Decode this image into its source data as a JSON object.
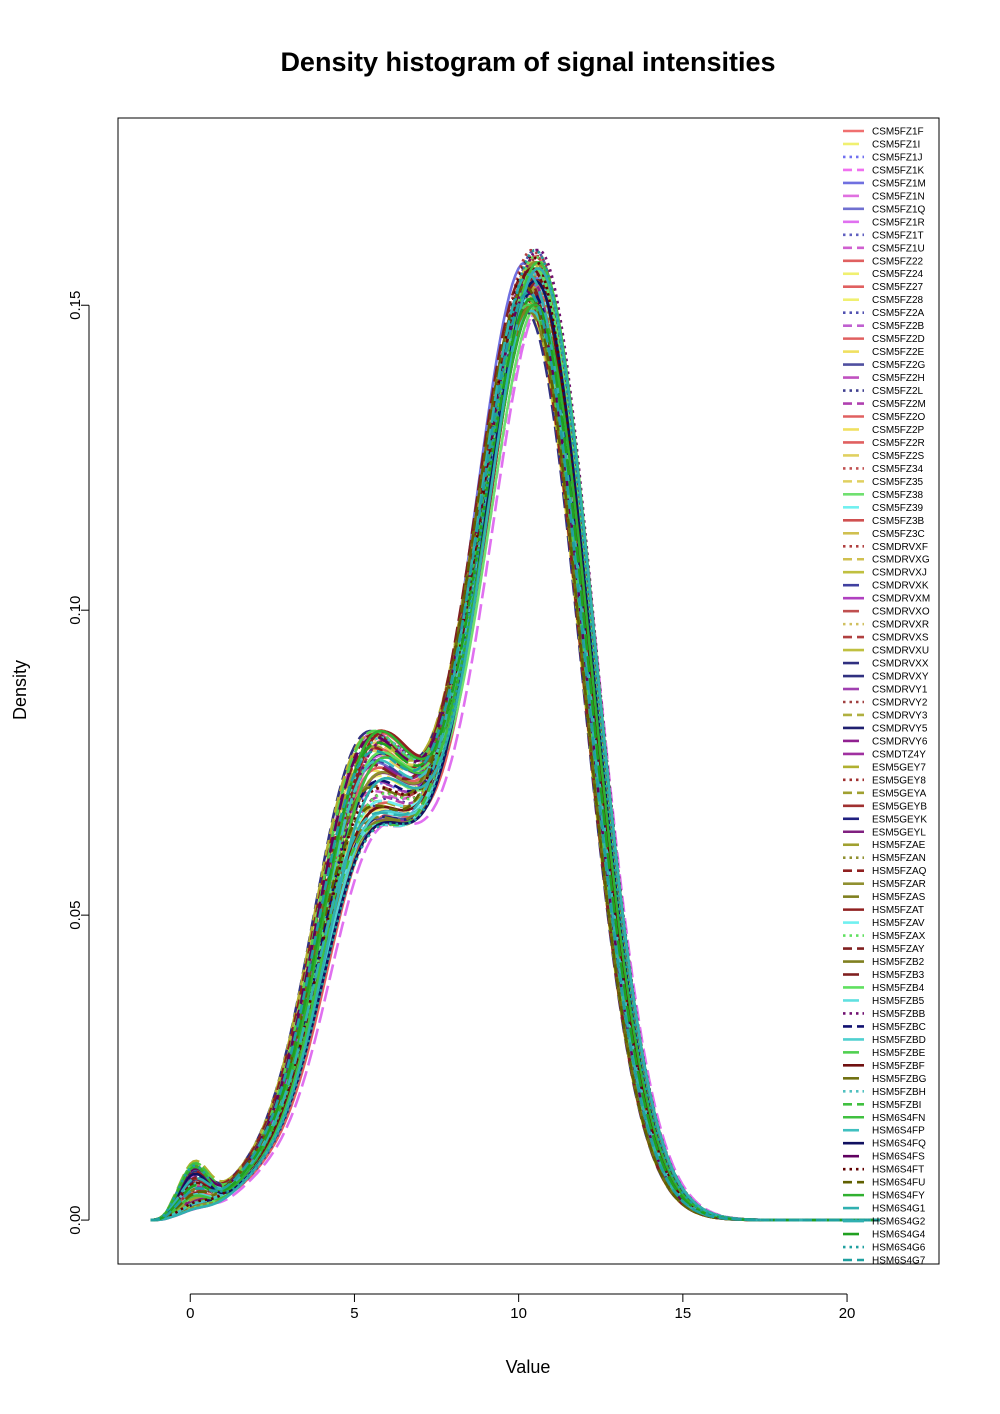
{
  "chart_data": {
    "type": "line",
    "title": "Density histogram of signal intensities",
    "xlabel": "Value",
    "ylabel": "Density",
    "xlim": [
      -2.2,
      22.8
    ],
    "ylim": [
      -0.0072,
      0.1807
    ],
    "x_ticks": [
      {
        "value": 0,
        "label": "0"
      },
      {
        "value": 5,
        "label": "5"
      },
      {
        "value": 10,
        "label": "10"
      },
      {
        "value": 15,
        "label": "15"
      },
      {
        "value": 20,
        "label": "20"
      }
    ],
    "y_ticks": [
      {
        "value": 0.0,
        "label": "0.00"
      },
      {
        "value": 0.05,
        "label": "0.05"
      },
      {
        "value": 0.1,
        "label": "0.10"
      },
      {
        "value": 0.15,
        "label": "0.15"
      }
    ],
    "grid": false,
    "legend_position": "top-right",
    "curve_x_range": [
      -1.2,
      21.0
    ],
    "series": [
      {
        "name": "CSM5FZ1F",
        "color": "#f07070",
        "dash": "solid",
        "peak_x": 10.6,
        "peak_y": 0.15
      },
      {
        "name": "CSM5FZ1I",
        "color": "#f0f070",
        "dash": "longdash",
        "peak_x": 10.4,
        "peak_y": 0.148
      },
      {
        "name": "CSM5FZ1J",
        "color": "#7070f0",
        "dash": "dotted",
        "peak_x": 10.5,
        "peak_y": 0.152
      },
      {
        "name": "CSM5FZ1K",
        "color": "#f070f0",
        "dash": "dashed",
        "peak_x": 10.7,
        "peak_y": 0.146
      },
      {
        "name": "CSM5FZ1M",
        "color": "#7070e0",
        "dash": "solid",
        "peak_x": 10.3,
        "peak_y": 0.154
      },
      {
        "name": "CSM5FZ1N",
        "color": "#e070e0",
        "dash": "longdash",
        "peak_x": 10.6,
        "peak_y": 0.149
      },
      {
        "name": "CSM5FZ1Q",
        "color": "#7070d0",
        "dash": "solid",
        "peak_x": 10.4,
        "peak_y": 0.151
      },
      {
        "name": "CSM5FZ1R",
        "color": "#e070f0",
        "dash": "longdash",
        "peak_x": 10.8,
        "peak_y": 0.147
      },
      {
        "name": "CSM5FZ1T",
        "color": "#6060c0",
        "dash": "dotted",
        "peak_x": 10.5,
        "peak_y": 0.153
      },
      {
        "name": "CSM5FZ1U",
        "color": "#d060d0",
        "dash": "dashed",
        "peak_x": 10.3,
        "peak_y": 0.15
      },
      {
        "name": "CSM5FZ22",
        "color": "#e06060",
        "dash": "solid",
        "peak_x": 10.6,
        "peak_y": 0.155
      },
      {
        "name": "CSM5FZ24",
        "color": "#f0f070",
        "dash": "longdash",
        "peak_x": 10.4,
        "peak_y": 0.145
      },
      {
        "name": "CSM5FZ27",
        "color": "#e06060",
        "dash": "solid",
        "peak_x": 10.7,
        "peak_y": 0.152
      },
      {
        "name": "CSM5FZ28",
        "color": "#f0f070",
        "dash": "longdash",
        "peak_x": 10.5,
        "peak_y": 0.148
      },
      {
        "name": "CSM5FZ2A",
        "color": "#5050b0",
        "dash": "dotted",
        "peak_x": 10.6,
        "peak_y": 0.156
      },
      {
        "name": "CSM5FZ2B",
        "color": "#c060d0",
        "dash": "dashed",
        "peak_x": 10.4,
        "peak_y": 0.149
      },
      {
        "name": "CSM5FZ2D",
        "color": "#e06060",
        "dash": "solid",
        "peak_x": 10.5,
        "peak_y": 0.151
      },
      {
        "name": "CSM5FZ2E",
        "color": "#f0e060",
        "dash": "longdash",
        "peak_x": 10.3,
        "peak_y": 0.147
      },
      {
        "name": "CSM5FZ2G",
        "color": "#5050a0",
        "dash": "solid",
        "peak_x": 10.6,
        "peak_y": 0.153
      },
      {
        "name": "CSM5FZ2H",
        "color": "#c050c0",
        "dash": "longdash",
        "peak_x": 10.4,
        "peak_y": 0.15
      },
      {
        "name": "CSM5FZ2L",
        "color": "#404090",
        "dash": "dotted",
        "peak_x": 10.7,
        "peak_y": 0.152
      },
      {
        "name": "CSM5FZ2M",
        "color": "#b040b0",
        "dash": "dashed",
        "peak_x": 10.5,
        "peak_y": 0.148
      },
      {
        "name": "CSM5FZ2O",
        "color": "#e06060",
        "dash": "solid",
        "peak_x": 10.6,
        "peak_y": 0.154
      },
      {
        "name": "CSM5FZ2P",
        "color": "#f0e060",
        "dash": "longdash",
        "peak_x": 10.4,
        "peak_y": 0.146
      },
      {
        "name": "CSM5FZ2R",
        "color": "#e06060",
        "dash": "solid",
        "peak_x": 10.5,
        "peak_y": 0.151
      },
      {
        "name": "CSM5FZ2S",
        "color": "#e0d060",
        "dash": "longdash",
        "peak_x": 10.3,
        "peak_y": 0.149
      },
      {
        "name": "CSM5FZ34",
        "color": "#c05050",
        "dash": "dotted",
        "peak_x": 10.6,
        "peak_y": 0.155
      },
      {
        "name": "CSM5FZ35",
        "color": "#e0d060",
        "dash": "dashed",
        "peak_x": 10.4,
        "peak_y": 0.15
      },
      {
        "name": "CSM5FZ38",
        "color": "#70e070",
        "dash": "solid",
        "peak_x": 10.7,
        "peak_y": 0.147
      },
      {
        "name": "CSM5FZ39",
        "color": "#70f0f0",
        "dash": "longdash",
        "peak_x": 10.5,
        "peak_y": 0.152
      },
      {
        "name": "CSM5FZ3B",
        "color": "#d05050",
        "dash": "solid",
        "peak_x": 10.6,
        "peak_y": 0.153
      },
      {
        "name": "CSM5FZ3C",
        "color": "#d0c050",
        "dash": "longdash",
        "peak_x": 10.4,
        "peak_y": 0.148
      },
      {
        "name": "CSMDRVXF",
        "color": "#b04040",
        "dash": "dotted",
        "peak_x": 10.5,
        "peak_y": 0.156
      },
      {
        "name": "CSMDRVXG",
        "color": "#d0c050",
        "dash": "dashed",
        "peak_x": 10.3,
        "peak_y": 0.149
      },
      {
        "name": "CSMDRVXJ",
        "color": "#c0c040",
        "dash": "solid",
        "peak_x": 10.6,
        "peak_y": 0.151
      },
      {
        "name": "CSMDRVXK",
        "color": "#4040a0",
        "dash": "longdash",
        "peak_x": 10.4,
        "peak_y": 0.147
      },
      {
        "name": "CSMDRVXM",
        "color": "#b040c0",
        "dash": "solid",
        "peak_x": 10.7,
        "peak_y": 0.153
      },
      {
        "name": "CSMDRVXO",
        "color": "#c05050",
        "dash": "longdash",
        "peak_x": 10.5,
        "peak_y": 0.15
      },
      {
        "name": "CSMDRVXR",
        "color": "#d0c060",
        "dash": "dotted",
        "peak_x": 10.6,
        "peak_y": 0.152
      },
      {
        "name": "CSMDRVXS",
        "color": "#b04040",
        "dash": "dashed",
        "peak_x": 10.4,
        "peak_y": 0.148
      },
      {
        "name": "CSMDRVXU",
        "color": "#c0c040",
        "dash": "solid",
        "peak_x": 10.5,
        "peak_y": 0.154
      },
      {
        "name": "CSMDRVXX",
        "color": "#303080",
        "dash": "longdash",
        "peak_x": 10.3,
        "peak_y": 0.146
      },
      {
        "name": "CSMDRVXY",
        "color": "#303080",
        "dash": "solid",
        "peak_x": 10.6,
        "peak_y": 0.151
      },
      {
        "name": "CSMDRVY1",
        "color": "#a040b0",
        "dash": "longdash",
        "peak_x": 10.4,
        "peak_y": 0.149
      },
      {
        "name": "CSMDRVY2",
        "color": "#a04040",
        "dash": "dotted",
        "peak_x": 10.7,
        "peak_y": 0.155
      },
      {
        "name": "CSMDRVY3",
        "color": "#b0b040",
        "dash": "dashed",
        "peak_x": 10.5,
        "peak_y": 0.15
      },
      {
        "name": "CSMDRVY5",
        "color": "#202070",
        "dash": "solid",
        "peak_x": 10.6,
        "peak_y": 0.147
      },
      {
        "name": "CSMDRVY6",
        "color": "#902090",
        "dash": "longdash",
        "peak_x": 10.4,
        "peak_y": 0.152
      },
      {
        "name": "CSMDTZ4Y",
        "color": "#a030a0",
        "dash": "solid",
        "peak_x": 10.5,
        "peak_y": 0.153
      },
      {
        "name": "ESM5GEY7",
        "color": "#b0b030",
        "dash": "longdash",
        "peak_x": 10.3,
        "peak_y": 0.148
      },
      {
        "name": "ESM5GEY8",
        "color": "#a03030",
        "dash": "dotted",
        "peak_x": 10.6,
        "peak_y": 0.156
      },
      {
        "name": "ESM5GEYA",
        "color": "#a0a030",
        "dash": "dashed",
        "peak_x": 10.4,
        "peak_y": 0.149
      },
      {
        "name": "ESM5GEYB",
        "color": "#a03030",
        "dash": "solid",
        "peak_x": 10.7,
        "peak_y": 0.151
      },
      {
        "name": "ESM5GEYK",
        "color": "#202080",
        "dash": "longdash",
        "peak_x": 10.5,
        "peak_y": 0.147
      },
      {
        "name": "ESM5GEYL",
        "color": "#802080",
        "dash": "solid",
        "peak_x": 10.6,
        "peak_y": 0.153
      },
      {
        "name": "HSM5FZAE",
        "color": "#a0a030",
        "dash": "longdash",
        "peak_x": 10.4,
        "peak_y": 0.15
      },
      {
        "name": "HSM5FZAN",
        "color": "#909030",
        "dash": "dotted",
        "peak_x": 10.5,
        "peak_y": 0.152
      },
      {
        "name": "HSM5FZAQ",
        "color": "#902020",
        "dash": "dashed",
        "peak_x": 10.3,
        "peak_y": 0.148
      },
      {
        "name": "HSM5FZAR",
        "color": "#909030",
        "dash": "solid",
        "peak_x": 10.6,
        "peak_y": 0.154
      },
      {
        "name": "HSM5FZAS",
        "color": "#808020",
        "dash": "longdash",
        "peak_x": 10.4,
        "peak_y": 0.146
      },
      {
        "name": "HSM5FZAT",
        "color": "#902020",
        "dash": "solid",
        "peak_x": 10.7,
        "peak_y": 0.151
      },
      {
        "name": "HSM5FZAV",
        "color": "#70f0f0",
        "dash": "longdash",
        "peak_x": 10.5,
        "peak_y": 0.149
      },
      {
        "name": "HSM5FZAX",
        "color": "#60e060",
        "dash": "dotted",
        "peak_x": 10.6,
        "peak_y": 0.155
      },
      {
        "name": "HSM5FZAY",
        "color": "#802020",
        "dash": "dashed",
        "peak_x": 10.4,
        "peak_y": 0.15
      },
      {
        "name": "HSM5FZB2",
        "color": "#808020",
        "dash": "solid",
        "peak_x": 10.5,
        "peak_y": 0.147
      },
      {
        "name": "HSM5FZB3",
        "color": "#802020",
        "dash": "longdash",
        "peak_x": 10.3,
        "peak_y": 0.152
      },
      {
        "name": "HSM5FZB4",
        "color": "#60e060",
        "dash": "solid",
        "peak_x": 10.6,
        "peak_y": 0.153
      },
      {
        "name": "HSM5FZB5",
        "color": "#60e0e0",
        "dash": "longdash",
        "peak_x": 10.4,
        "peak_y": 0.148
      },
      {
        "name": "HSM5FZBB",
        "color": "#701070",
        "dash": "dotted",
        "peak_x": 10.7,
        "peak_y": 0.156
      },
      {
        "name": "HSM5FZBC",
        "color": "#101070",
        "dash": "dashed",
        "peak_x": 10.5,
        "peak_y": 0.149
      },
      {
        "name": "HSM5FZBD",
        "color": "#50d0d0",
        "dash": "solid",
        "peak_x": 10.6,
        "peak_y": 0.151
      },
      {
        "name": "HSM5FZBE",
        "color": "#50d050",
        "dash": "longdash",
        "peak_x": 10.4,
        "peak_y": 0.147
      },
      {
        "name": "HSM5FZBF",
        "color": "#701010",
        "dash": "solid",
        "peak_x": 10.5,
        "peak_y": 0.153
      },
      {
        "name": "HSM5FZBG",
        "color": "#707010",
        "dash": "longdash",
        "peak_x": 10.3,
        "peak_y": 0.15
      },
      {
        "name": "HSM5FZBH",
        "color": "#50c0c0",
        "dash": "dotted",
        "peak_x": 10.6,
        "peak_y": 0.152
      },
      {
        "name": "HSM5FZBI",
        "color": "#40c040",
        "dash": "dashed",
        "peak_x": 10.4,
        "peak_y": 0.148
      },
      {
        "name": "HSM6S4FN",
        "color": "#40c040",
        "dash": "solid",
        "peak_x": 10.7,
        "peak_y": 0.154
      },
      {
        "name": "HSM6S4FP",
        "color": "#40c0c0",
        "dash": "longdash",
        "peak_x": 10.5,
        "peak_y": 0.146
      },
      {
        "name": "HSM6S4FQ",
        "color": "#101060",
        "dash": "solid",
        "peak_x": 10.6,
        "peak_y": 0.151
      },
      {
        "name": "HSM6S4FS",
        "color": "#600060",
        "dash": "longdash",
        "peak_x": 10.4,
        "peak_y": 0.149
      },
      {
        "name": "HSM6S4FT",
        "color": "#600000",
        "dash": "dotted",
        "peak_x": 10.5,
        "peak_y": 0.155
      },
      {
        "name": "HSM6S4FU",
        "color": "#606000",
        "dash": "dashed",
        "peak_x": 10.3,
        "peak_y": 0.15
      },
      {
        "name": "HSM6S4FY",
        "color": "#30b030",
        "dash": "solid",
        "peak_x": 10.6,
        "peak_y": 0.147
      },
      {
        "name": "HSM6S4G1",
        "color": "#30b0b0",
        "dash": "longdash",
        "peak_x": 10.4,
        "peak_y": 0.152
      },
      {
        "name": "HSM6S4G2",
        "color": "#30b0b0",
        "dash": "solid",
        "peak_x": 10.7,
        "peak_y": 0.153
      },
      {
        "name": "HSM6S4G4",
        "color": "#20a020",
        "dash": "longdash",
        "peak_x": 10.5,
        "peak_y": 0.148
      },
      {
        "name": "HSM6S4G6",
        "color": "#20a0a0",
        "dash": "dotted",
        "peak_x": 10.6,
        "peak_y": 0.156
      },
      {
        "name": "HSM6S4G7",
        "color": "#20a0a0",
        "dash": "dashed",
        "peak_x": 10.4,
        "peak_y": 0.149
      }
    ]
  }
}
